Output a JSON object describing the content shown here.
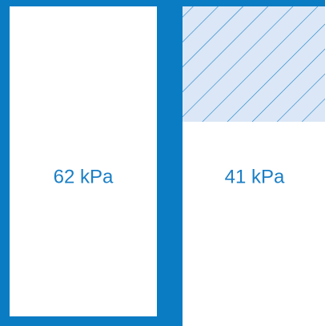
{
  "panels": [
    {
      "label": "62 kPa"
    },
    {
      "label": "41 kPa"
    }
  ]
}
